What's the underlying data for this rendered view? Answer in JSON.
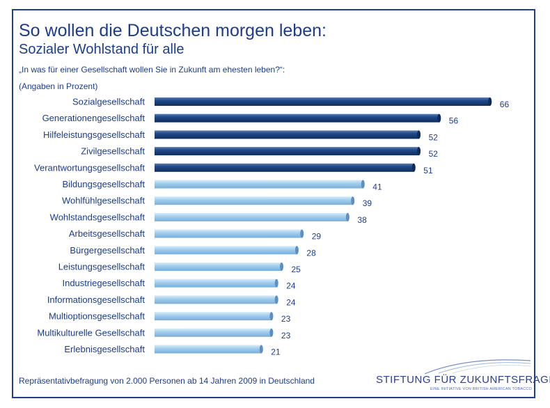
{
  "header": {
    "title": "So wollen die Deutschen morgen leben:",
    "subtitle": "Sozialer Wohlstand für alle",
    "question": "„In was für einer Gesellschaft wollen Sie in Zukunft am ehesten leben?“:",
    "unit_note": "(Angaben in Prozent)"
  },
  "footer": {
    "source": "Repräsentativbefragung von 2.000 Personen ab 14 Jahren 2009 in Deutschland"
  },
  "logo": {
    "name": "STIFTUNG FÜR ZUKUNFTSFRAGEN",
    "tagline": "EINE INITIATIVE VON BRITISH AMERICAN TOBACCO"
  },
  "colors": {
    "dark_bar": "#1b3f7e",
    "light_bar": "#9ecbea",
    "text": "#1c3c8c",
    "frame": "#1f3f8a"
  },
  "chart_data": {
    "type": "bar",
    "orientation": "horizontal",
    "categories": [
      "Sozialgesellschaft",
      "Generationengesellschaft",
      "Hilfeleistungsgesellschaft",
      "Zivilgesellschaft",
      "Verantwortungsgesellschaft",
      "Bildungsgesellschaft",
      "Wohlfühlgesellschaft",
      "Wohlstandsgesellschaft",
      "Arbeitsgesellschaft",
      "Bürgergesellschaft",
      "Leistungsgesellschaft",
      "Industriegesellschaft",
      "Informationsgesellschaft",
      "Multioptionsgesellschaft",
      "Multikulturelle Gesellschaft",
      "Erlebnisgesellschaft"
    ],
    "values": [
      66,
      56,
      52,
      52,
      51,
      41,
      39,
      38,
      29,
      28,
      25,
      24,
      24,
      23,
      23,
      21
    ],
    "highlight": [
      "dark",
      "dark",
      "dark",
      "dark",
      "dark",
      "light",
      "light",
      "light",
      "light",
      "light",
      "light",
      "light",
      "light",
      "light",
      "light",
      "light"
    ],
    "xlim": [
      0,
      70
    ],
    "grid": false,
    "legend": "none"
  }
}
